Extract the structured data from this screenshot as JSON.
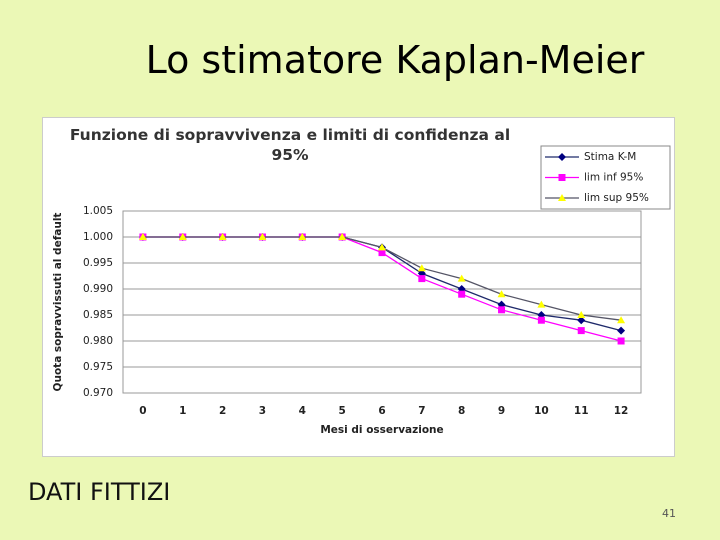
{
  "slide": {
    "title": "Lo stimatore Kaplan-Meier",
    "note": "DATI FITTIZI",
    "page_number": "41"
  },
  "chart_data": {
    "type": "line",
    "title": "Funzione di sopravvivenza e limiti di confidenza al 95%",
    "x_label": "Mesi di osservazione",
    "y_label": "Quota sopravvissuti al default",
    "categories": [
      0,
      1,
      2,
      3,
      4,
      5,
      6,
      7,
      8,
      9,
      10,
      11,
      12
    ],
    "series": [
      {
        "name": "Stima K-M",
        "color": "#000080",
        "line_color": "#1f2a6b",
        "marker": "diamond",
        "values": [
          1,
          1,
          1,
          1,
          1,
          1,
          0.998,
          0.993,
          0.99,
          0.987,
          0.985,
          0.984,
          0.982
        ]
      },
      {
        "name": "lim inf 95%",
        "color": "#ff00ff",
        "line_color": "#ff00ff",
        "marker": "square",
        "values": [
          1,
          1,
          1,
          1,
          1,
          1,
          0.997,
          0.992,
          0.989,
          0.986,
          0.984,
          0.982,
          0.98
        ]
      },
      {
        "name": "lim sup 95%",
        "color": "#ffff00",
        "line_color": "#555566",
        "marker": "triangle",
        "values": [
          1,
          1,
          1,
          1,
          1,
          1,
          0.998,
          0.994,
          0.992,
          0.989,
          0.987,
          0.985,
          0.984
        ]
      }
    ],
    "ylim": [
      0.97,
      1.005
    ],
    "yticks": [
      {
        "value": 0.97,
        "label": "0.970"
      },
      0.975,
      {
        "value": 0.98,
        "label": "0.980"
      },
      0.985,
      {
        "value": 0.99,
        "label": "0.990"
      },
      0.995,
      {
        "value": 1,
        "label": "1.000"
      },
      1.005
    ],
    "grid": true,
    "legend": "top-right"
  }
}
